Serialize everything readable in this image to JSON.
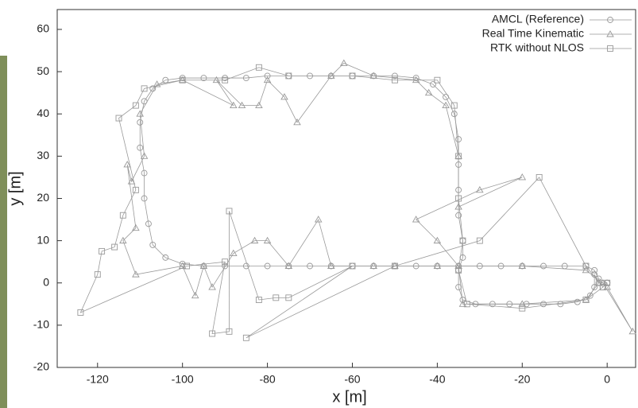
{
  "chart_data": {
    "type": "line",
    "x_label": "x [m]",
    "y_label": "y [m]",
    "xlim": [
      -129.5,
      6.7
    ],
    "ylim": [
      -20,
      64.7
    ],
    "xticks": [
      -120,
      -100,
      -80,
      -60,
      -40,
      -20,
      0
    ],
    "yticks": [
      -20,
      -10,
      0,
      10,
      20,
      30,
      40,
      50,
      60
    ],
    "grid": false,
    "legend": "upper right",
    "series": [
      {
        "name": "AMCL (Reference)",
        "color": "#999999",
        "marker": "circle",
        "x": [
          0,
          -2,
          -3,
          -5,
          -10,
          -15,
          -20,
          -25,
          -30,
          -35,
          -40,
          -45,
          -50,
          -55,
          -60,
          -65,
          -70,
          -75,
          -80,
          -85,
          -90,
          -95,
          -100,
          -104,
          -107,
          -108,
          -109,
          -109,
          -110,
          -110,
          -109,
          -107,
          -104,
          -100,
          -95,
          -90,
          -85,
          -80,
          -75,
          -70,
          -65,
          -60,
          -55,
          -50,
          -45,
          -41,
          -38,
          -36,
          -35,
          -35,
          -35,
          -35,
          -34,
          -34,
          -35,
          -35,
          -34,
          -31,
          -27,
          -23,
          -19,
          -15,
          -11,
          -7,
          -4,
          -3,
          -3,
          -2,
          0
        ],
        "y": [
          0,
          1,
          3,
          4,
          4,
          4,
          4,
          4,
          4,
          4,
          4,
          4,
          4,
          4,
          4,
          4,
          4,
          4,
          4,
          4,
          4,
          4,
          4.5,
          6,
          9,
          14,
          20,
          26,
          32,
          38,
          43,
          46,
          48,
          48.5,
          48.5,
          48.5,
          48.5,
          49,
          49,
          49,
          49,
          49,
          49,
          49,
          48.5,
          47,
          44,
          40,
          34,
          28,
          22,
          16,
          10,
          6,
          3,
          -1,
          -4,
          -5,
          -5,
          -5,
          -5,
          -5,
          -5,
          -4.5,
          -3,
          -1,
          2,
          0,
          0
        ]
      },
      {
        "name": "Real Time Kinematic",
        "color": "#999999",
        "marker": "triangle",
        "x": [
          0,
          6,
          -1,
          -5,
          -20,
          -40,
          -50,
          -55,
          -65,
          -68,
          -75,
          -80,
          -83,
          -88,
          -93,
          -95,
          -97,
          -100,
          -111,
          -114,
          -111,
          -113,
          -112,
          -109,
          -110,
          -106,
          -100,
          -88,
          -92,
          -86,
          -82,
          -80,
          -76,
          -73,
          -65,
          -62,
          -55,
          -45,
          -42,
          -38,
          -35,
          -35,
          -20,
          -30,
          -45,
          -40,
          -35,
          -34,
          -20,
          -5,
          -2
        ],
        "y": [
          -1,
          -11.5,
          0,
          3,
          4,
          4,
          4,
          4,
          4,
          15,
          4,
          10,
          10,
          7,
          -1,
          4,
          -3,
          4,
          2,
          10,
          13,
          28,
          24,
          30,
          40,
          47,
          48,
          42,
          48,
          42,
          42,
          48,
          44,
          38,
          49,
          52,
          49,
          48,
          45,
          42,
          30,
          18,
          25,
          22,
          15,
          10,
          4,
          -5,
          -5,
          -4,
          0
        ]
      },
      {
        "name": "RTK without NLOS",
        "color": "#999999",
        "marker": "square",
        "x": [
          0,
          -1,
          -5,
          -16,
          -30,
          -50,
          -85,
          -60,
          -75,
          -78,
          -82,
          -89,
          -89,
          -93,
          -90,
          -99,
          -124,
          -120,
          -119,
          -116,
          -114,
          -111,
          -115,
          -111,
          -109,
          -100,
          -90,
          -82,
          -75,
          -60,
          -50,
          -40,
          -36,
          -35,
          -35,
          -34,
          -35,
          -33,
          -20,
          -5,
          -1
        ],
        "y": [
          0,
          -1,
          4,
          25,
          10,
          4,
          -13,
          4,
          -3.5,
          -3.5,
          -4,
          17,
          -11.5,
          -12,
          5,
          4,
          -7,
          2,
          7.5,
          8.5,
          16,
          22,
          39,
          42,
          46,
          48,
          48,
          51,
          49,
          49,
          48,
          48,
          42,
          30,
          20,
          10,
          3,
          -5,
          -6,
          -4,
          -1
        ]
      }
    ]
  }
}
